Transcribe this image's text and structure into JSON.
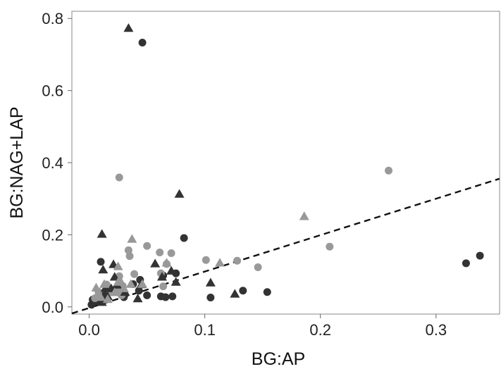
{
  "chart_data": {
    "type": "scatter",
    "title": "",
    "xlabel": "BG:AP",
    "ylabel": "BG:NAG+LAP",
    "xlim": [
      -0.015,
      0.355
    ],
    "ylim": [
      -0.02,
      0.82
    ],
    "xticks": [
      0.0,
      0.1,
      0.2,
      0.3
    ],
    "xtick_labels": [
      "0.0",
      "0.1",
      "0.2",
      "0.3"
    ],
    "yticks": [
      0.0,
      0.2,
      0.4,
      0.6,
      0.8
    ],
    "ytick_labels": [
      "0.0",
      "0.2",
      "0.4",
      "0.6",
      "0.8"
    ],
    "grid": false,
    "legend": "none",
    "colors": {
      "dark": "#333333",
      "light": "#999999",
      "line": "#111111"
    },
    "reference_line": {
      "style": "dashed",
      "intercept": -0.003,
      "slope": 1.01
    },
    "series": [
      {
        "marker": "circle",
        "color": "dark",
        "points": [
          [
            0.046,
            0.733
          ],
          [
            0.082,
            0.191
          ],
          [
            0.338,
            0.142
          ],
          [
            0.326,
            0.121
          ],
          [
            0.154,
            0.041
          ],
          [
            0.133,
            0.045
          ],
          [
            0.105,
            0.026
          ],
          [
            0.062,
            0.029
          ],
          [
            0.066,
            0.027
          ],
          [
            0.072,
            0.029
          ],
          [
            0.05,
            0.032
          ],
          [
            0.044,
            0.075
          ],
          [
            0.01,
            0.125
          ],
          [
            0.003,
            0.02
          ],
          [
            0.006,
            0.015
          ],
          [
            0.002,
            0.006
          ],
          [
            0.018,
            0.05
          ],
          [
            0.043,
            0.045
          ],
          [
            0.064,
            0.087
          ],
          [
            0.075,
            0.093
          ],
          [
            0.03,
            0.027
          ],
          [
            0.013,
            0.033
          ],
          [
            0.038,
            0.063
          ]
        ]
      },
      {
        "marker": "circle",
        "color": "light",
        "points": [
          [
            0.259,
            0.378
          ],
          [
            0.026,
            0.359
          ],
          [
            0.208,
            0.167
          ],
          [
            0.05,
            0.169
          ],
          [
            0.034,
            0.157
          ],
          [
            0.035,
            0.141
          ],
          [
            0.061,
            0.151
          ],
          [
            0.071,
            0.149
          ],
          [
            0.101,
            0.13
          ],
          [
            0.128,
            0.128
          ],
          [
            0.146,
            0.11
          ],
          [
            0.067,
            0.119
          ],
          [
            0.062,
            0.093
          ],
          [
            0.039,
            0.091
          ],
          [
            0.026,
            0.085
          ],
          [
            0.015,
            0.062
          ],
          [
            0.029,
            0.058
          ],
          [
            0.02,
            0.042
          ],
          [
            0.064,
            0.057
          ],
          [
            0.008,
            0.042
          ],
          [
            0.005,
            0.024
          ],
          [
            0.028,
            0.032
          ],
          [
            0.024,
            0.046
          ]
        ]
      },
      {
        "marker": "triangle",
        "color": "dark",
        "points": [
          [
            0.034,
            0.773
          ],
          [
            0.078,
            0.313
          ],
          [
            0.011,
            0.202
          ],
          [
            0.021,
            0.118
          ],
          [
            0.012,
            0.103
          ],
          [
            0.057,
            0.12
          ],
          [
            0.071,
            0.1
          ],
          [
            0.063,
            0.083
          ],
          [
            0.022,
            0.083
          ],
          [
            0.045,
            0.062
          ],
          [
            0.019,
            0.051
          ],
          [
            0.016,
            0.029
          ],
          [
            0.105,
            0.067
          ],
          [
            0.126,
            0.036
          ],
          [
            0.042,
            0.023
          ],
          [
            0.011,
            0.013
          ],
          [
            0.031,
            0.041
          ],
          [
            0.075,
            0.069
          ],
          [
            0.024,
            0.061
          ],
          [
            0.014,
            0.052
          ]
        ]
      },
      {
        "marker": "triangle",
        "color": "light",
        "points": [
          [
            0.186,
            0.251
          ],
          [
            0.037,
            0.188
          ],
          [
            0.113,
            0.122
          ],
          [
            0.067,
            0.122
          ],
          [
            0.006,
            0.053
          ],
          [
            0.013,
            0.063
          ],
          [
            0.025,
            0.069
          ],
          [
            0.036,
            0.063
          ],
          [
            0.046,
            0.063
          ],
          [
            0.022,
            0.04
          ],
          [
            0.01,
            0.027
          ],
          [
            0.03,
            0.051
          ],
          [
            0.025,
            0.112
          ],
          [
            0.007,
            0.034
          ],
          [
            0.016,
            0.021
          ],
          [
            0.027,
            0.072
          ]
        ]
      }
    ]
  }
}
